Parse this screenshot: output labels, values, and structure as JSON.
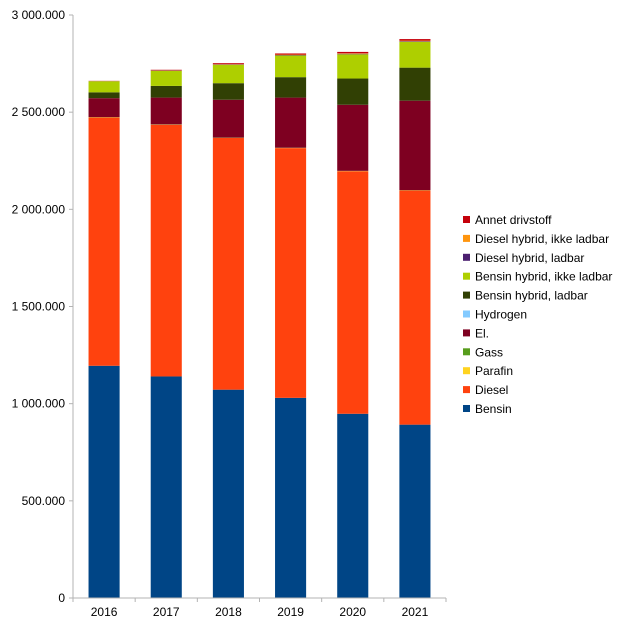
{
  "chart_data": {
    "type": "bar",
    "stacked": true,
    "title": "",
    "xlabel": "",
    "ylabel": "",
    "ylim": [
      0,
      3000000
    ],
    "yticks": [
      0,
      500000,
      1000000,
      1500000,
      2000000,
      2500000,
      3000000
    ],
    "ytick_labels": [
      "0",
      "500.000",
      "1 000.000",
      "1 500.000",
      "2 000.000",
      "2 500.000",
      "3 000.000"
    ],
    "grid": false,
    "legend_position": "right",
    "categories": [
      "2016",
      "2017",
      "2018",
      "2019",
      "2020",
      "2021"
    ],
    "series": [
      {
        "name": "Bensin",
        "color": "#004586",
        "values": [
          1195000,
          1140000,
          1072000,
          1030000,
          948000,
          892000
        ]
      },
      {
        "name": "Diesel",
        "color": "#ff420e",
        "values": [
          1278000,
          1295000,
          1295000,
          1285000,
          1248000,
          1205000
        ]
      },
      {
        "name": "Parafin",
        "color": "#ffd320",
        "values": [
          1000,
          1000,
          1000,
          1000,
          1000,
          1000
        ]
      },
      {
        "name": "Gass",
        "color": "#579d1c",
        "values": [
          1000,
          1000,
          1000,
          1000,
          1000,
          1000
        ]
      },
      {
        "name": "El.",
        "color": "#7e0021",
        "values": [
          97000,
          138000,
          195000,
          258000,
          340000,
          460000
        ]
      },
      {
        "name": "Hydrogen",
        "color": "#83caff",
        "values": [
          100,
          100,
          100,
          100,
          100,
          100
        ]
      },
      {
        "name": "Bensin hybrid, ladbar",
        "color": "#314004",
        "values": [
          30000,
          60000,
          85000,
          105000,
          135000,
          170000
        ]
      },
      {
        "name": "Bensin hybrid, ikke ladbar",
        "color": "#aecf00",
        "values": [
          57000,
          78000,
          95000,
          112000,
          125000,
          133000
        ]
      },
      {
        "name": "Diesel hybrid, ladbar",
        "color": "#4b1f6f",
        "values": [
          500,
          1000,
          1500,
          2000,
          2500,
          3000
        ]
      },
      {
        "name": "Diesel hybrid, ikke ladbar",
        "color": "#ff950e",
        "values": [
          500,
          1000,
          1500,
          2000,
          2500,
          3000
        ]
      },
      {
        "name": "Annet drivstoff",
        "color": "#c5000b",
        "values": [
          1000,
          3000,
          5000,
          6000,
          7000,
          8000
        ]
      }
    ]
  }
}
